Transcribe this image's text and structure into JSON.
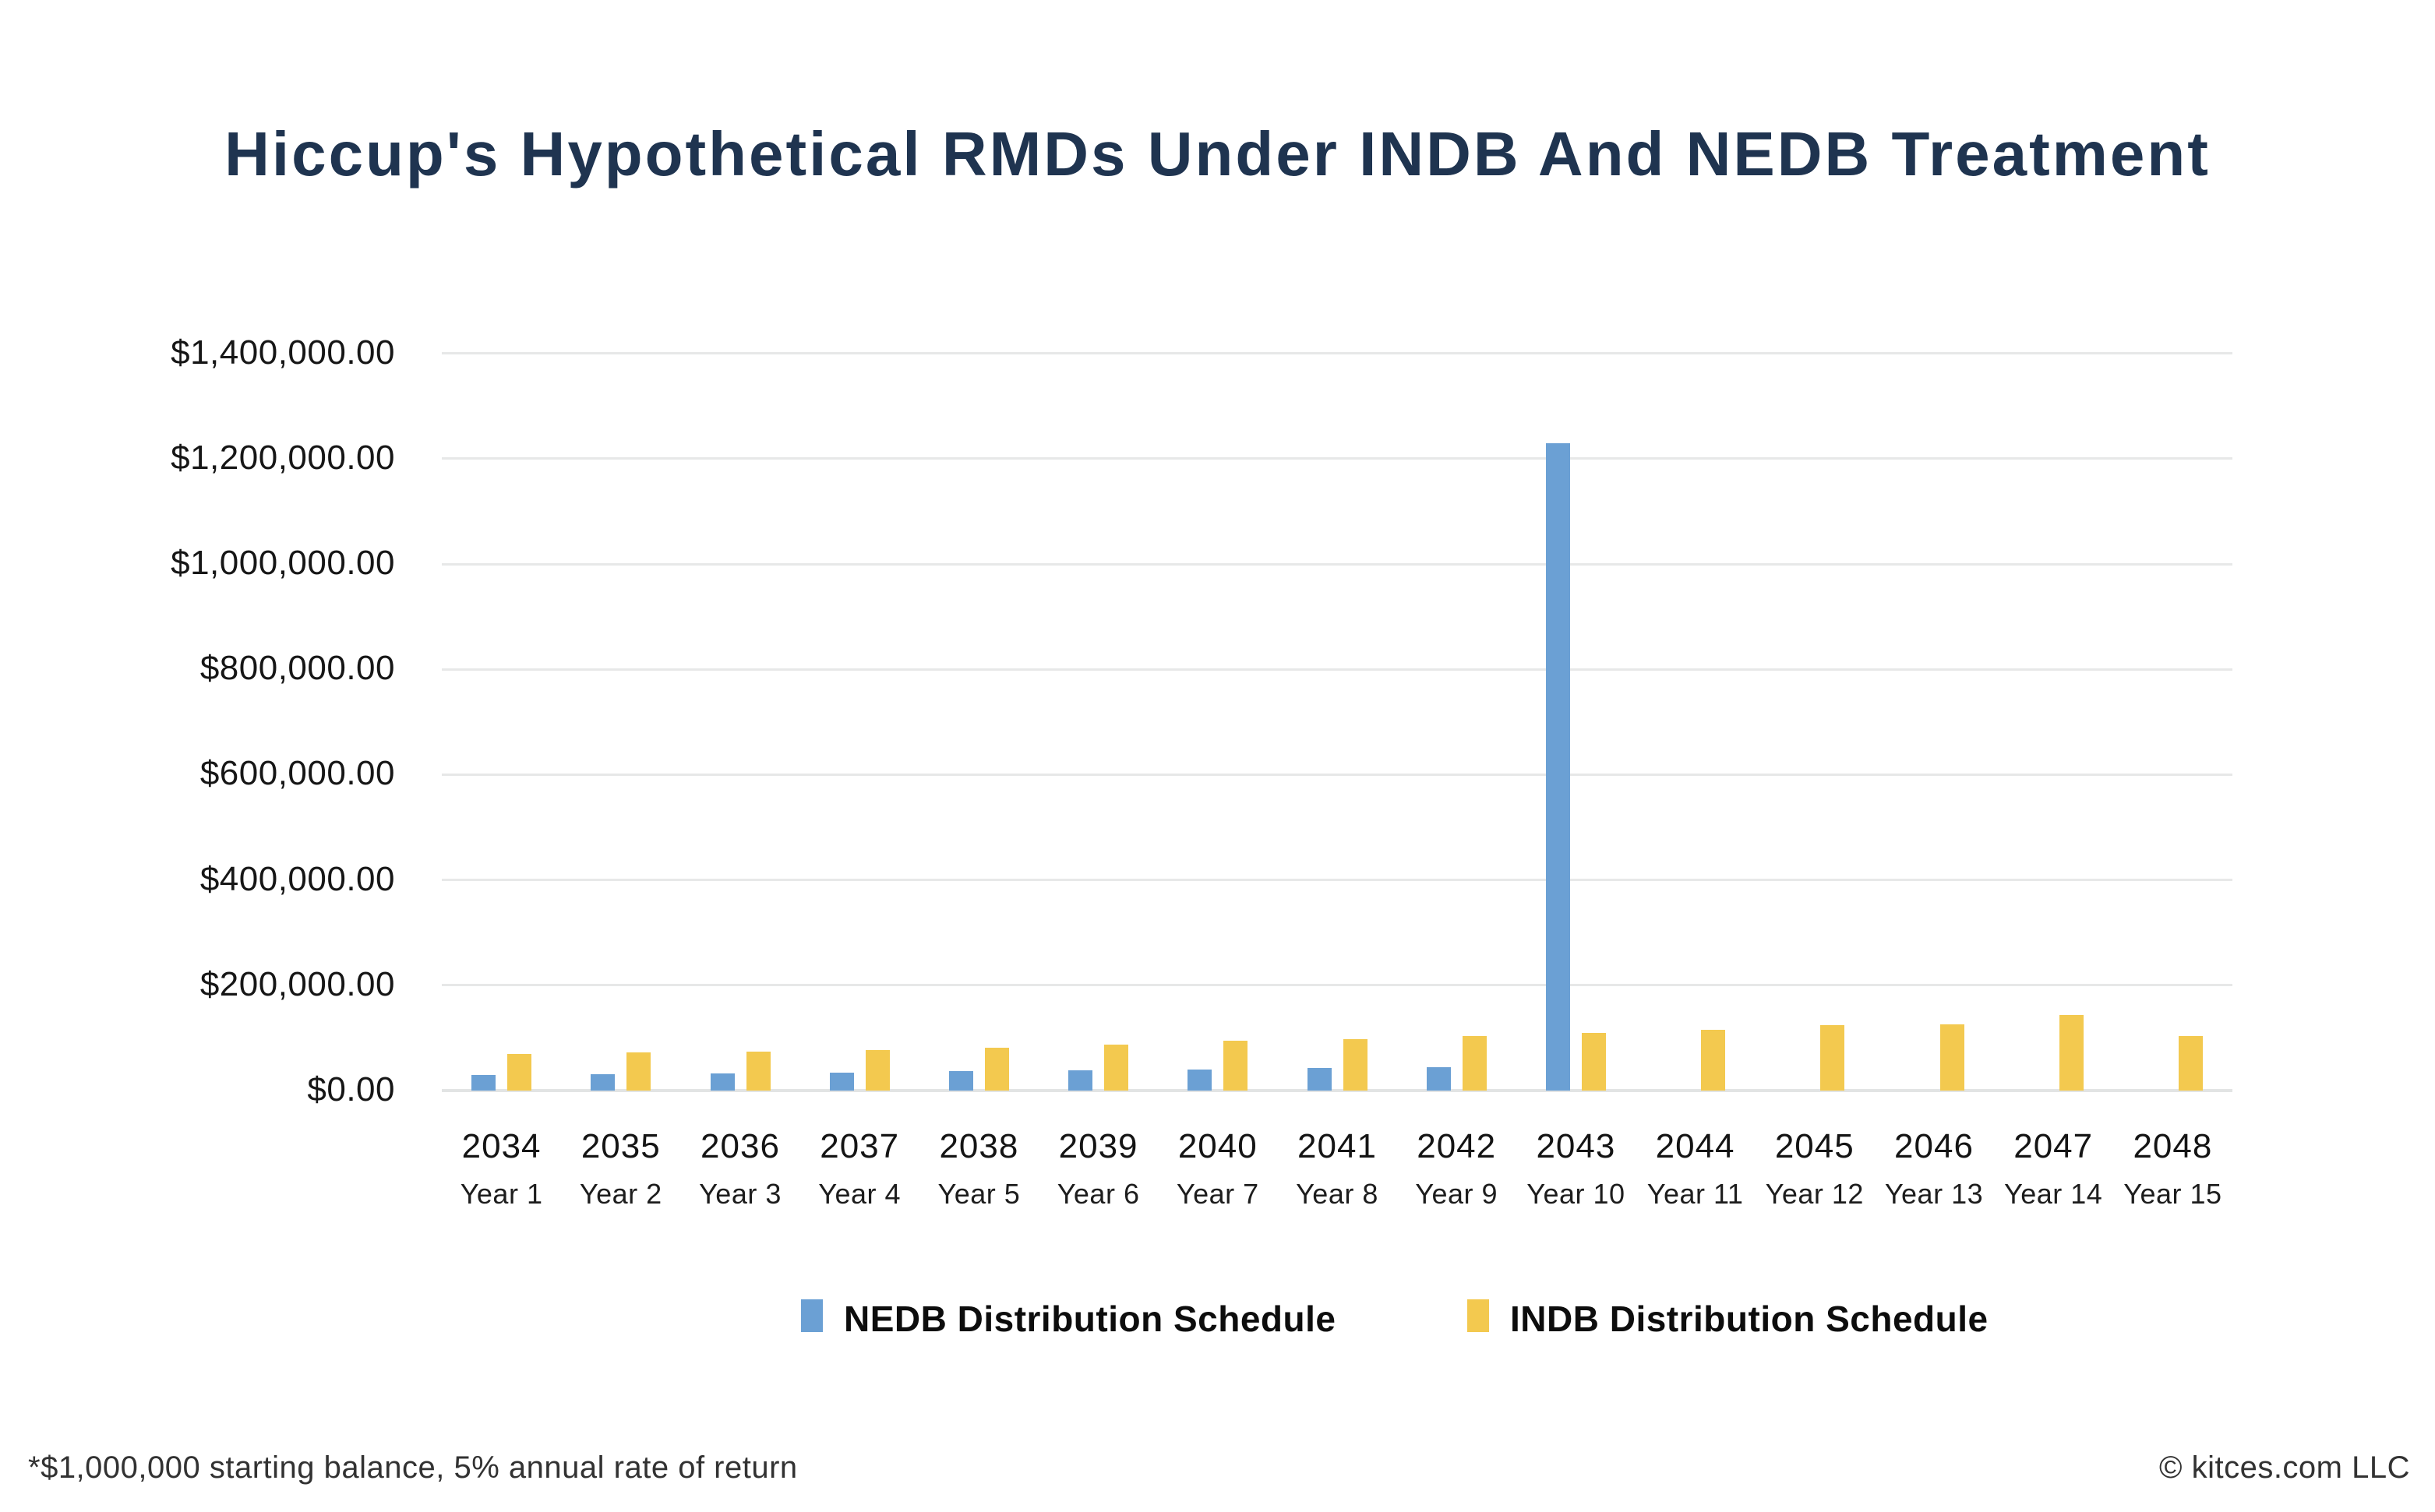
{
  "title": "Hiccup's Hypothetical RMDs Under INDB And NEDB Treatment",
  "footer": {
    "note": "*$1,000,000 starting balance, 5% annual rate of return",
    "copyright": "© kitces.com LLC"
  },
  "colors": {
    "title_navy": "#1f3450",
    "nedb_blue": "#6ba0d4",
    "indb_yellow": "#f3c94f",
    "gridline_gray": "#e7e8e8",
    "axis_text": "#161616"
  },
  "chart_data": {
    "type": "bar",
    "title": "Hiccup's Hypothetical RMDs Under INDB And NEDB Treatment",
    "xlabel": "",
    "ylabel": "",
    "ylim": [
      0,
      1400000
    ],
    "grid": true,
    "legend_position": "bottom",
    "categories": [
      "2034",
      "2035",
      "2036",
      "2037",
      "2038",
      "2039",
      "2040",
      "2041",
      "2042",
      "2043",
      "2044",
      "2045",
      "2046",
      "2047",
      "2048"
    ],
    "category_sublabels": [
      "Year 1",
      "Year 2",
      "Year 3",
      "Year 4",
      "Year 5",
      "Year 6",
      "Year 7",
      "Year 8",
      "Year 9",
      "Year 10",
      "Year 11",
      "Year 12",
      "Year 13",
      "Year 14",
      "Year 15"
    ],
    "series": [
      {
        "name": "NEDB Distribution Schedule",
        "color": "#6ba0d4",
        "values": [
          30000,
          31500,
          33000,
          34500,
          36500,
          38500,
          40500,
          42500,
          45000,
          1230000,
          0,
          0,
          0,
          0,
          0
        ]
      },
      {
        "name": "INDB Distribution Schedule",
        "color": "#f3c94f",
        "values": [
          70000,
          72000,
          74000,
          77000,
          81000,
          88000,
          95000,
          98000,
          103000,
          109000,
          115000,
          125000,
          126000,
          144000,
          104000
        ]
      }
    ],
    "y_ticks": [
      {
        "value": 0,
        "label": "$0.00"
      },
      {
        "value": 200000,
        "label": "$200,000.00"
      },
      {
        "value": 400000,
        "label": "$400,000.00"
      },
      {
        "value": 600000,
        "label": "$600,000.00"
      },
      {
        "value": 800000,
        "label": "$800,000.00"
      },
      {
        "value": 1000000,
        "label": "$1,000,000.00"
      },
      {
        "value": 1200000,
        "label": "$1,200,000.00"
      },
      {
        "value": 1400000,
        "label": "$1,400,000.00"
      }
    ],
    "legend": [
      {
        "label": "NEDB Distribution Schedule",
        "color": "#6ba0d4"
      },
      {
        "label": "INDB Distribution Schedule",
        "color": "#f3c94f"
      }
    ]
  }
}
